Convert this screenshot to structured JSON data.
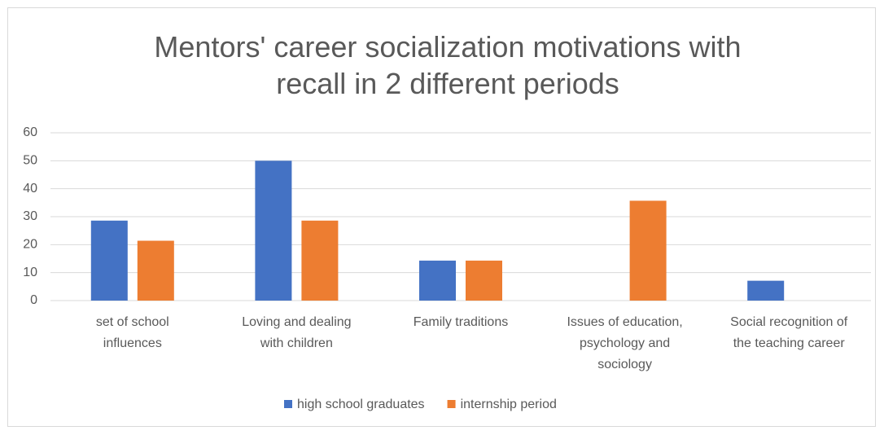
{
  "chart_data": {
    "type": "bar",
    "title": "Mentors' career socialization motivations with recall in 2 different periods",
    "categories": [
      "set of school influences",
      "Loving and dealing with children",
      "Family traditions",
      "Issues of education, psychology and sociology",
      "Social recognition of the teaching career"
    ],
    "series": [
      {
        "name": "high school graduates",
        "color": "#4472c4",
        "values": [
          28.6,
          50,
          14.3,
          0,
          7.1
        ]
      },
      {
        "name": "internship period",
        "color": "#ed7d31",
        "values": [
          21.4,
          28.6,
          14.3,
          35.7,
          0
        ]
      }
    ],
    "ylim": [
      0,
      60
    ],
    "yticks": [
      0,
      10,
      20,
      30,
      40,
      50,
      60
    ],
    "grid": true,
    "legend": "bottom"
  }
}
